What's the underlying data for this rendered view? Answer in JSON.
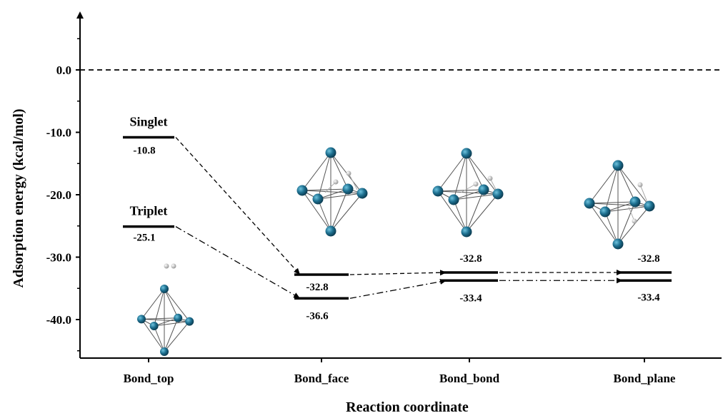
{
  "chart_data": {
    "type": "line",
    "xlabel": "Reaction coordinate",
    "ylabel": "Adsorption energy  (kcal/mol)",
    "categories": [
      "Bond_top",
      "Bond_face",
      "Bond_bond",
      "Bond_plane"
    ],
    "ylim": [
      -45,
      10
    ],
    "yticks": [
      "0.0",
      "-10.0",
      "-20.0",
      "-30.0",
      "-40.0"
    ],
    "reference_line": 0,
    "series": [
      {
        "name": "Singlet",
        "line_style": "dashed",
        "values": [
          -10.8,
          -32.8,
          -32.8,
          -32.8
        ],
        "labels": [
          "-10.8",
          "-32.8",
          "-32.8",
          "-32.8"
        ]
      },
      {
        "name": "Triplet",
        "line_style": "dash-dot",
        "values": [
          -25.1,
          -36.6,
          -33.4,
          -33.4
        ],
        "labels": [
          "-25.1",
          "-36.6",
          "-33.4",
          "-33.4"
        ]
      }
    ],
    "grid": false,
    "legend": "none",
    "colors": {
      "line": "#000000",
      "atom": "#1d6f8f",
      "atom_small": "#d9d9d9"
    }
  }
}
